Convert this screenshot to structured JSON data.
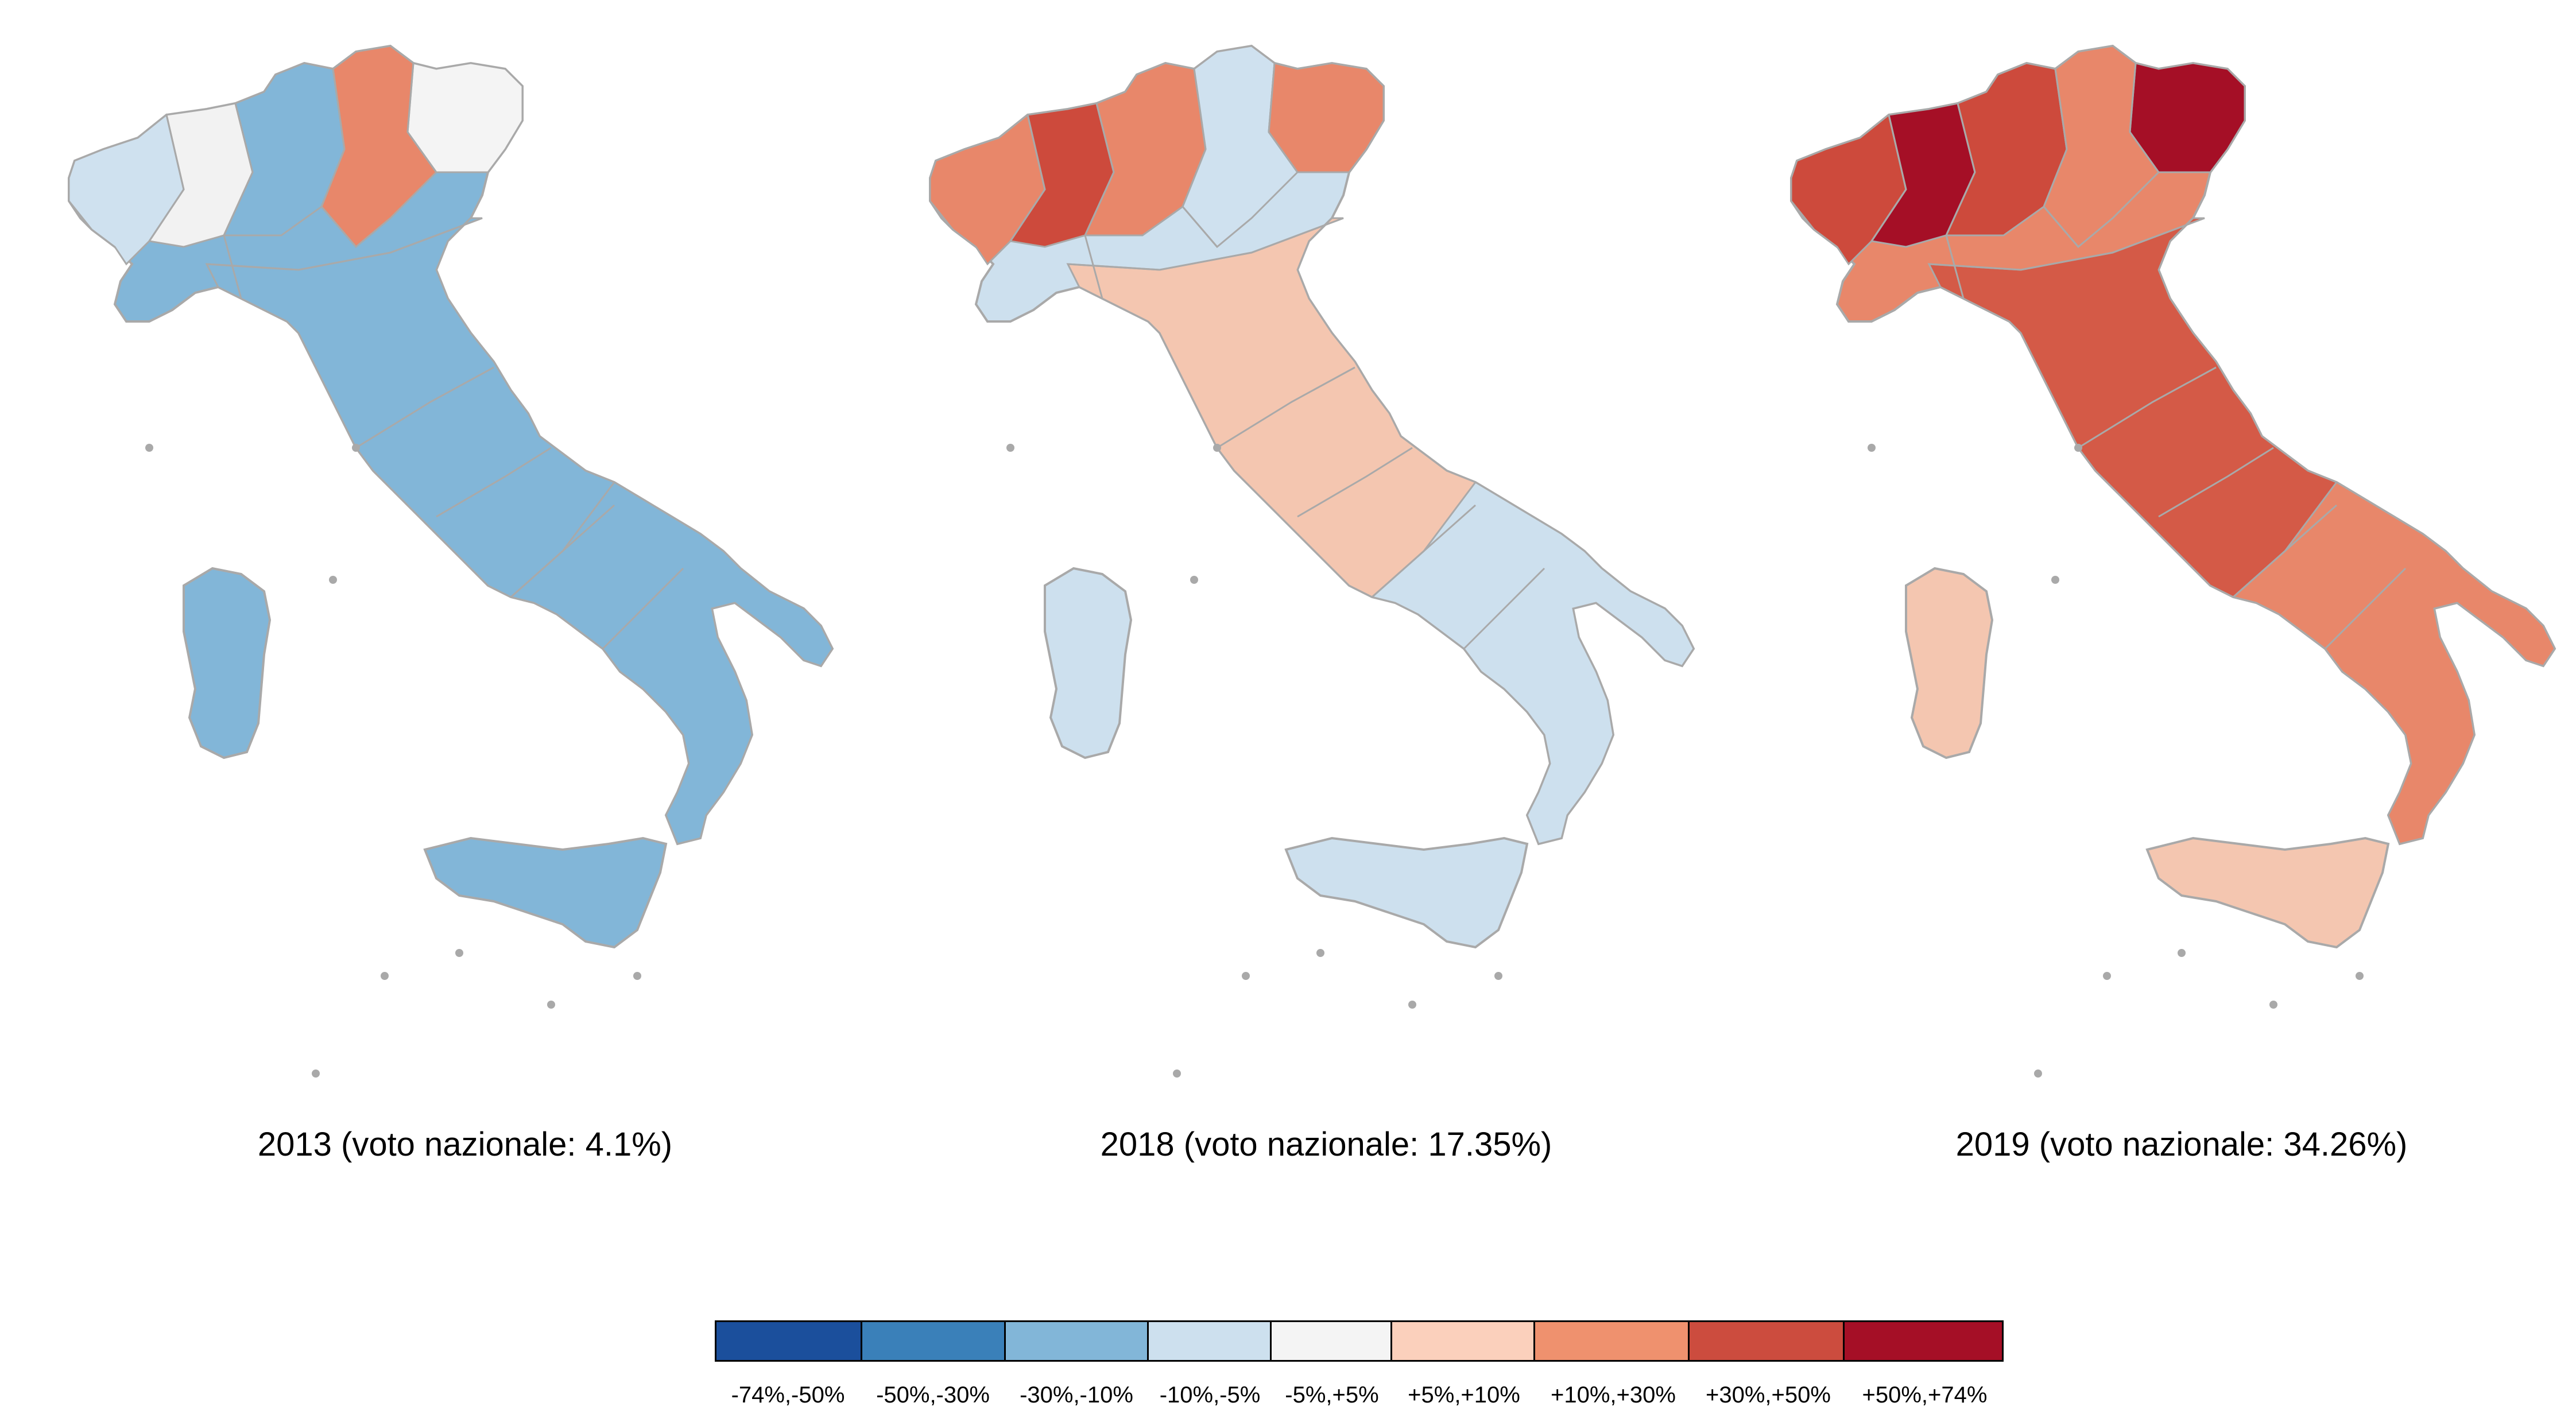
{
  "maps": [
    {
      "caption": "2013 (voto nazionale: 4.1%)",
      "base_fill": "#82b6d8",
      "north_fills": [
        "#cfe1ef",
        "#f2f2f2",
        "#82b6d8",
        "#e8876a",
        "#f4f4f4"
      ],
      "center_fill": "#82b6d8",
      "south_fill": "#82b6d8",
      "islands_fill": "#82b6d8"
    },
    {
      "caption": "2018 (voto nazionale: 17.35%)",
      "base_fill": "#cde0ee",
      "north_fills": [
        "#e8876a",
        "#cd4a3c",
        "#e8876a",
        "#cfe1ef",
        "#e8876a"
      ],
      "center_fill": "#f4c6b0",
      "south_fill": "#cde0ee",
      "islands_fill": "#cde0ee"
    },
    {
      "caption": "2019 (voto nazionale: 34.26%)",
      "base_fill": "#e8876a",
      "north_fills": [
        "#cd4a3c",
        "#a50f26",
        "#cd4a3c",
        "#e8876a",
        "#a50f26"
      ],
      "center_fill": "#d45a47",
      "south_fill": "#e8876a",
      "islands_fill": "#f4c6b0"
    }
  ],
  "legend": {
    "bins": [
      {
        "label": "-74%,-50%",
        "color": "#1b4f9c"
      },
      {
        "label": "-50%,-30%",
        "color": "#3a80b9"
      },
      {
        "label": "-30%,-10%",
        "color": "#82b6d8"
      },
      {
        "label": "-10%,-5%",
        "color": "#cde0ee"
      },
      {
        "label": "-5%,+5%",
        "color": "#f4f4f4"
      },
      {
        "label": "+5%,+10%",
        "color": "#fbd0bc"
      },
      {
        "label": "+10%,+30%",
        "color": "#ef916e"
      },
      {
        "label": "+30%,+50%",
        "color": "#cc4c3e"
      },
      {
        "label": "+50%,+74%",
        "color": "#a50f26"
      }
    ]
  }
}
